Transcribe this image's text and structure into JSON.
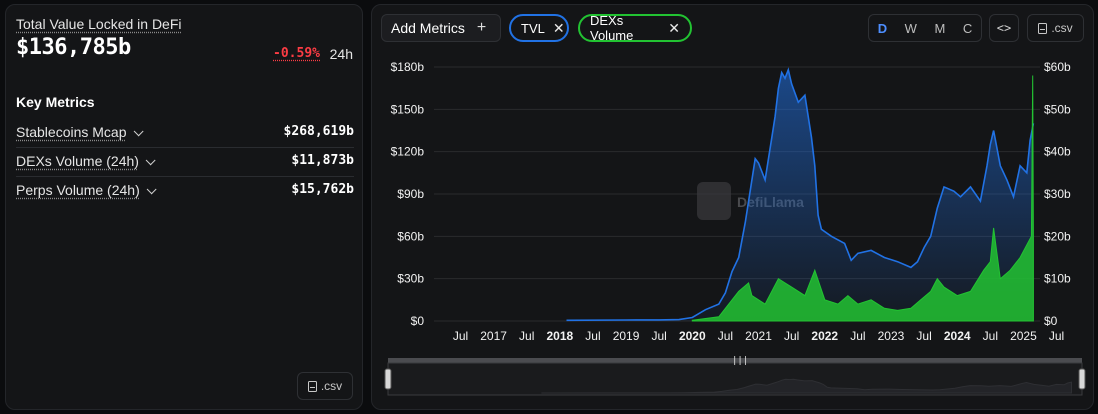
{
  "summary": {
    "tvl_label": "Total Value Locked in DeFi",
    "tvl_value": "$136,785b",
    "tvl_change": "-0.59%",
    "tvl_period": "24h",
    "key_metrics_title": "Key Metrics",
    "metrics": [
      {
        "label": "Stablecoins Mcap",
        "value": "$268,619b"
      },
      {
        "label": "DEXs Volume (24h)",
        "value": "$11,873b"
      },
      {
        "label": "Perps Volume (24h)",
        "value": "$15,762b"
      }
    ],
    "csv_label": ".csv"
  },
  "toolbar": {
    "add_metrics_label": "Add Metrics",
    "chips": [
      {
        "label": "TVL",
        "color": "#2172e5"
      },
      {
        "label": "DEXs Volume",
        "color": "#22c332"
      }
    ],
    "periods": [
      "D",
      "W",
      "M",
      "C"
    ],
    "active_period": "D",
    "embed_label": "<>",
    "csv_label": ".csv"
  },
  "watermark": "DefiLlama",
  "chart_data": {
    "type": "area",
    "x_ticks": [
      "Jul",
      "2017",
      "Jul",
      "2018",
      "Jul",
      "2019",
      "Jul",
      "2020",
      "Jul",
      "2021",
      "Jul",
      "2022",
      "Jul",
      "2023",
      "Jul",
      "2024",
      "Jul",
      "2025",
      "Jul"
    ],
    "bold_ticks": [
      "2018",
      "2020",
      "2022",
      "2024"
    ],
    "left_axis": {
      "ticks": [
        "$0",
        "$30b",
        "$60b",
        "$90b",
        "$120b",
        "$150b",
        "$180b"
      ],
      "ylim": [
        0,
        180
      ]
    },
    "right_axis": {
      "ticks": [
        "$0",
        "$10b",
        "$20b",
        "$30b",
        "$40b",
        "$50b",
        "$60b"
      ],
      "ylim": [
        0,
        60
      ]
    },
    "series": [
      {
        "name": "TVL",
        "color": "#2172e5",
        "axis": "left",
        "points": [
          [
            2018.6,
            0.5
          ],
          [
            2019.5,
            0.7
          ],
          [
            2020.0,
            0.8
          ],
          [
            2020.3,
            1.0
          ],
          [
            2020.5,
            2.5
          ],
          [
            2020.7,
            8
          ],
          [
            2020.9,
            12
          ],
          [
            2021.0,
            20
          ],
          [
            2021.1,
            35
          ],
          [
            2021.2,
            45
          ],
          [
            2021.3,
            70
          ],
          [
            2021.35,
            85
          ],
          [
            2021.45,
            115
          ],
          [
            2021.5,
            112
          ],
          [
            2021.6,
            100
          ],
          [
            2021.7,
            130
          ],
          [
            2021.75,
            145
          ],
          [
            2021.8,
            165
          ],
          [
            2021.85,
            176
          ],
          [
            2021.9,
            172
          ],
          [
            2021.95,
            178
          ],
          [
            2022.0,
            168
          ],
          [
            2022.1,
            155
          ],
          [
            2022.2,
            160
          ],
          [
            2022.3,
            130
          ],
          [
            2022.35,
            110
          ],
          [
            2022.4,
            75
          ],
          [
            2022.45,
            65
          ],
          [
            2022.6,
            60
          ],
          [
            2022.8,
            55
          ],
          [
            2022.9,
            43
          ],
          [
            2023.0,
            48
          ],
          [
            2023.2,
            50
          ],
          [
            2023.4,
            45
          ],
          [
            2023.6,
            42
          ],
          [
            2023.8,
            38
          ],
          [
            2023.9,
            42
          ],
          [
            2024.0,
            52
          ],
          [
            2024.1,
            60
          ],
          [
            2024.2,
            80
          ],
          [
            2024.3,
            95
          ],
          [
            2024.45,
            92
          ],
          [
            2024.55,
            88
          ],
          [
            2024.7,
            95
          ],
          [
            2024.85,
            85
          ],
          [
            2024.95,
            110
          ],
          [
            2025.0,
            125
          ],
          [
            2025.05,
            135
          ],
          [
            2025.15,
            110
          ],
          [
            2025.25,
            100
          ],
          [
            2025.35,
            88
          ],
          [
            2025.45,
            110
          ],
          [
            2025.55,
            105
          ],
          [
            2025.6,
            128
          ],
          [
            2025.65,
            140
          ]
        ]
      },
      {
        "name": "DEXs Volume",
        "color": "#22c332",
        "axis": "right",
        "points": [
          [
            2020.5,
            0.2
          ],
          [
            2020.9,
            1
          ],
          [
            2021.0,
            3
          ],
          [
            2021.2,
            7
          ],
          [
            2021.35,
            9
          ],
          [
            2021.4,
            6
          ],
          [
            2021.6,
            4
          ],
          [
            2021.8,
            10
          ],
          [
            2021.9,
            9
          ],
          [
            2022.0,
            8
          ],
          [
            2022.2,
            6
          ],
          [
            2022.35,
            12
          ],
          [
            2022.5,
            5
          ],
          [
            2022.7,
            4
          ],
          [
            2022.85,
            6
          ],
          [
            2023.0,
            4
          ],
          [
            2023.2,
            5
          ],
          [
            2023.4,
            3
          ],
          [
            2023.6,
            2.5
          ],
          [
            2023.8,
            3
          ],
          [
            2023.95,
            5
          ],
          [
            2024.1,
            7
          ],
          [
            2024.2,
            10
          ],
          [
            2024.3,
            8
          ],
          [
            2024.5,
            6
          ],
          [
            2024.7,
            7
          ],
          [
            2024.9,
            12
          ],
          [
            2025.0,
            14
          ],
          [
            2025.05,
            22
          ],
          [
            2025.15,
            10
          ],
          [
            2025.3,
            12
          ],
          [
            2025.45,
            15
          ],
          [
            2025.55,
            18
          ],
          [
            2025.62,
            20
          ],
          [
            2025.64,
            58
          ],
          [
            2025.65,
            20
          ]
        ]
      }
    ]
  }
}
